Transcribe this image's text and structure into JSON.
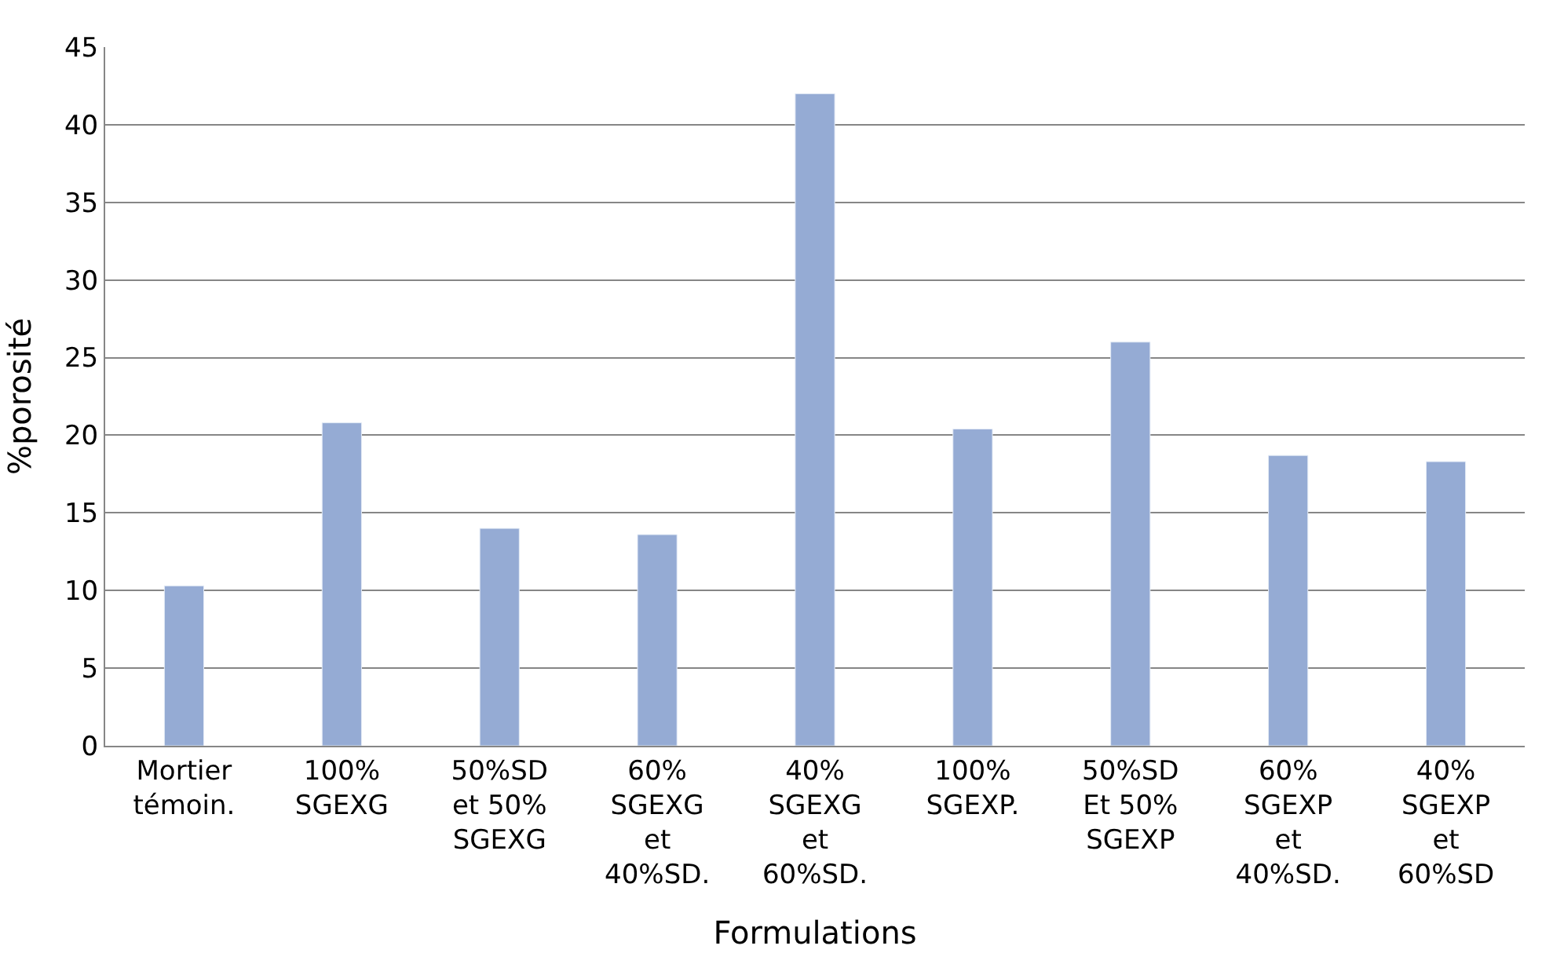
{
  "chart_data": {
    "type": "bar",
    "xlabel": "Formulations",
    "ylabel": "%porosité",
    "categories": [
      "Mortier\ntémoin.",
      "100%\nSGEXG",
      "50%SD\net 50%\nSGEXG",
      "60%\nSGEXG\net\n40%SD.",
      "40%\nSGEXG\net\n60%SD.",
      "100%\nSGEXP.",
      "50%SD\nEt 50%\nSGEXP",
      "60%\nSGEXP\net\n40%SD.",
      "40%\nSGEXP\net\n60%SD"
    ],
    "values": [
      10.3,
      20.8,
      14,
      13.6,
      42,
      20.4,
      26,
      18.7,
      18.3
    ],
    "color": "#95abd4",
    "ylim": [
      0,
      45
    ],
    "yticks": [
      0,
      5,
      10,
      15,
      20,
      25,
      30,
      35,
      40,
      45
    ],
    "grid": "y"
  }
}
